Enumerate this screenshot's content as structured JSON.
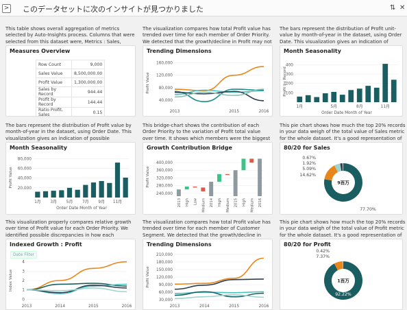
{
  "header": {
    "title": "このデータセットに次のインサイトが見つかりました",
    "expand_label": ">"
  },
  "cards": {
    "measures": {
      "desc": "This table shows overall aggregation of metrics selected by Auto-Insights process. Columns that were selected from this dataset were, Metrics : Sales, Profit, Dimensions : Order Priority, Custom...",
      "title": "Measures Overview",
      "rows": [
        {
          "k": "Row Count",
          "v": "9,000"
        },
        {
          "k": "Sales Value",
          "v": "8,500,000.00"
        },
        {
          "k": "Profit Value",
          "v": "1,300,000.00"
        },
        {
          "k": "Sales by Record",
          "v": "944.44"
        },
        {
          "k": "Profit by Record",
          "v": "144.44"
        },
        {
          "k": "Ratio Profit, Sales",
          "v": "0.15"
        }
      ]
    },
    "trend1": {
      "desc": "The visualization compares how total Profit value has trended over time for each member of Order Priority. We detected that the growth/decline in Profit may not have been consistent across all...",
      "title": "Trending Dimensions",
      "ylabel": "Profit Value"
    },
    "season1": {
      "desc": "The bars represent the distribution of Profit unit-value by month-of-year in the dataset, using Order Date. This visualization gives an indication of possible seasonality of Profit value over month...",
      "title": "Month Seasonality",
      "ylabel": "Profit by Record",
      "xlabel": "Order Date Month of Year"
    },
    "season2": {
      "desc": "The bars represent the distribution of Profit value by month-of-year in the dataset, using Order Date. This visualization gives an indication of possible seasonality of Profit value over months. W...",
      "title": "Month Seasonality",
      "ylabel": "Profit Value",
      "xlabel": "Order Date Month of Year"
    },
    "bridge": {
      "desc": "This bridge-chart shows the contribution of each Order Priority to the variation of Profit total value over time. It shows which members were the biggest contributors to a variation of the me...",
      "title": "Growth Contribution Bridge",
      "ylabel": "Profit Value"
    },
    "pie1": {
      "desc": "This pie chart shows how much the top 20% records in your data weigh of the total value of Sales metric for the whole dataset. It's a good representation of importance of top individuals in your dat...",
      "title": "80/20 for Sales",
      "center": "9百万"
    },
    "indexed": {
      "desc": "This visualization properly compares relative growth over time of Profit value for each Order Priority. We identified possible discrepancies in how each member is trending, which could lead...",
      "title": "Indexed Growth : Profit",
      "filter": "Date Filter",
      "ylabel": "Index Value"
    },
    "trend2": {
      "desc": "The visualization compares how total Profit value has trended over time for each member of Customer Segment. We detected that the growth/decline in Profit may not have been consistent acros...",
      "title": "Trending Dimensions",
      "ylabel": "Profit Value"
    },
    "pie2": {
      "desc": "This pie chart shows how much the top 20% records in your data weigh of the total value of Profit metric for the whole dataset. It's a good representation of importance of top individuals in your dat...",
      "title": "80/20 for Profit",
      "center": "1百万"
    }
  },
  "chart_data": [
    {
      "id": "trend1",
      "type": "line",
      "title": "Trending Dimensions",
      "ylabel": "Profit Value",
      "x": [
        2013,
        2014,
        2015,
        2016
      ],
      "xticks": [
        "2013",
        "2015",
        "2016"
      ],
      "yticks": [
        "40,000",
        "80,000",
        "120,000",
        "160,000"
      ],
      "ylim": [
        20000,
        170000
      ],
      "series": [
        {
          "color": "#e8861a",
          "values": [
            75000,
            70000,
            120000,
            148000
          ]
        },
        {
          "color": "#4cc3c0",
          "values": [
            58000,
            72000,
            65000,
            70000
          ]
        },
        {
          "color": "#1e8c8a",
          "values": [
            68000,
            35000,
            75000,
            72000
          ]
        },
        {
          "color": "#2c3e50",
          "values": [
            65000,
            60000,
            68000,
            38000
          ]
        },
        {
          "color": "#8cbfb0",
          "values": [
            50000,
            65000,
            55000,
            75000
          ]
        }
      ]
    },
    {
      "id": "season1",
      "type": "bar",
      "title": "Month Seasonality",
      "ylabel": "Profit by Record",
      "xlabel": "Order Date Month of Year",
      "categories": [
        "1月",
        "2月",
        "3月",
        "4月",
        "5月",
        "6月",
        "7月",
        "8月",
        "9月",
        "10月",
        "11月",
        "12月"
      ],
      "tick_labels": [
        "1月",
        "5月",
        "8月",
        "11月"
      ],
      "values": [
        60,
        75,
        55,
        95,
        110,
        80,
        130,
        145,
        175,
        155,
        410,
        240
      ],
      "yticks": [
        "100",
        "200",
        "300",
        "400"
      ],
      "ylim": [
        0,
        440
      ],
      "color": "#1b5e62"
    },
    {
      "id": "season2",
      "type": "bar",
      "title": "Month Seasonality",
      "ylabel": "Profit Value",
      "xlabel": "Order Date Month of Year",
      "categories": [
        "1月",
        "2月",
        "3月",
        "4月",
        "5月",
        "6月",
        "7月",
        "8月",
        "9月",
        "10月",
        "11月",
        "12月"
      ],
      "tick_labels": [
        "1月",
        "3月",
        "5月",
        "7月",
        "9月",
        "11月"
      ],
      "values": [
        12000,
        13000,
        14000,
        15000,
        20000,
        16000,
        26000,
        31000,
        34000,
        30000,
        72000,
        41000
      ],
      "yticks": [
        "20,000",
        "40,000",
        "60,000",
        "80,000"
      ],
      "ylim": [
        0,
        82000
      ],
      "color": "#1b5e62"
    },
    {
      "id": "bridge",
      "type": "bar",
      "title": "Growth Contribution Bridge",
      "ylabel": "Profit Value",
      "categories": [
        "2013",
        "High",
        "Low",
        "Medium",
        "2014",
        "High",
        "Medium",
        "2015",
        "High",
        "Medium",
        "2016"
      ],
      "yticks": [
        "240,000",
        "280,000",
        "320,000",
        "360,000",
        "400,000"
      ],
      "ylim": [
        225000,
        425000
      ],
      "bars": [
        {
          "from": 225000,
          "to": 260000,
          "kind": "total"
        },
        {
          "from": 260000,
          "to": 275000,
          "kind": "up"
        },
        {
          "from": 275000,
          "to": 270000,
          "kind": "down"
        },
        {
          "from": 270000,
          "to": 250000,
          "kind": "down"
        },
        {
          "from": 225000,
          "to": 300000,
          "kind": "total"
        },
        {
          "from": 300000,
          "to": 340000,
          "kind": "up"
        },
        {
          "from": 340000,
          "to": 335000,
          "kind": "down"
        },
        {
          "from": 225000,
          "to": 360000,
          "kind": "total"
        },
        {
          "from": 360000,
          "to": 420000,
          "kind": "up"
        },
        {
          "from": 420000,
          "to": 400000,
          "kind": "down"
        },
        {
          "from": 225000,
          "to": 420000,
          "kind": "total"
        }
      ]
    },
    {
      "id": "pie1",
      "type": "pie",
      "title": "80/20 for Sales",
      "center": "9百万",
      "slices": [
        {
          "label": "77.70%",
          "value": 77.7,
          "color": "#1b5e62"
        },
        {
          "label": "14.62%",
          "value": 14.62,
          "color": "#e8861a"
        },
        {
          "label": "5.09%",
          "value": 5.09,
          "color": "#9fd3d0"
        },
        {
          "label": "1.92%",
          "value": 1.92,
          "color": "#2c3e50"
        },
        {
          "label": "0.67%",
          "value": 0.67,
          "color": "#cccccc"
        }
      ]
    },
    {
      "id": "indexed",
      "type": "line",
      "title": "Indexed Growth : Profit",
      "ylabel": "Index Value",
      "x": [
        2013,
        2014,
        2015,
        2016
      ],
      "xticks": [
        "2013",
        "2014",
        "2015",
        "2016"
      ],
      "yticks": [
        "0",
        "1",
        "2",
        "3",
        "4"
      ],
      "ylim": [
        -0.2,
        4.2
      ],
      "series": [
        {
          "color": "#e8861a",
          "values": [
            1.0,
            2.0,
            3.3,
            4.0
          ]
        },
        {
          "color": "#1b5e62",
          "values": [
            1.0,
            1.6,
            1.7,
            1.4
          ]
        },
        {
          "color": "#4cc3c0",
          "values": [
            1.0,
            0.6,
            1.4,
            1.6
          ]
        },
        {
          "color": "#2c3e50",
          "values": [
            1.0,
            0.7,
            1.5,
            1.2
          ]
        },
        {
          "color": "#9fd3d0",
          "values": [
            1.0,
            0.9,
            1.2,
            0.8
          ]
        }
      ]
    },
    {
      "id": "trend2",
      "type": "line",
      "title": "Trending Dimensions",
      "ylabel": "Profit Value",
      "x": [
        2013,
        2014,
        2015,
        2016
      ],
      "xticks": [
        "2013",
        "2014",
        "2015",
        "2016"
      ],
      "yticks": [
        "30,000",
        "60,000",
        "90,000",
        "120,000",
        "150,000",
        "180,000",
        "210,000"
      ],
      "ylim": [
        25000,
        215000
      ],
      "series": [
        {
          "color": "#e8861a",
          "values": [
            92000,
            95000,
            115000,
            195000
          ]
        },
        {
          "color": "#2c3e50",
          "values": [
            72000,
            88000,
            110000,
            112000
          ]
        },
        {
          "color": "#4cc3c0",
          "values": [
            55000,
            60000,
            58000,
            62000
          ]
        },
        {
          "color": "#1b5e62",
          "values": [
            48000,
            62000,
            42000,
            56000
          ]
        },
        {
          "color": "#9fd3d0",
          "values": [
            35000,
            42000,
            50000,
            40000
          ]
        }
      ]
    },
    {
      "id": "pie2",
      "type": "pie",
      "title": "80/20 for Profit",
      "center": "1百万",
      "slices": [
        {
          "label": "92.22%",
          "value": 92.22,
          "color": "#1b5e62"
        },
        {
          "label": "7.37%",
          "value": 7.37,
          "color": "#e8861a"
        },
        {
          "label": "0.42%",
          "value": 0.42,
          "color": "#cccccc"
        }
      ]
    }
  ]
}
